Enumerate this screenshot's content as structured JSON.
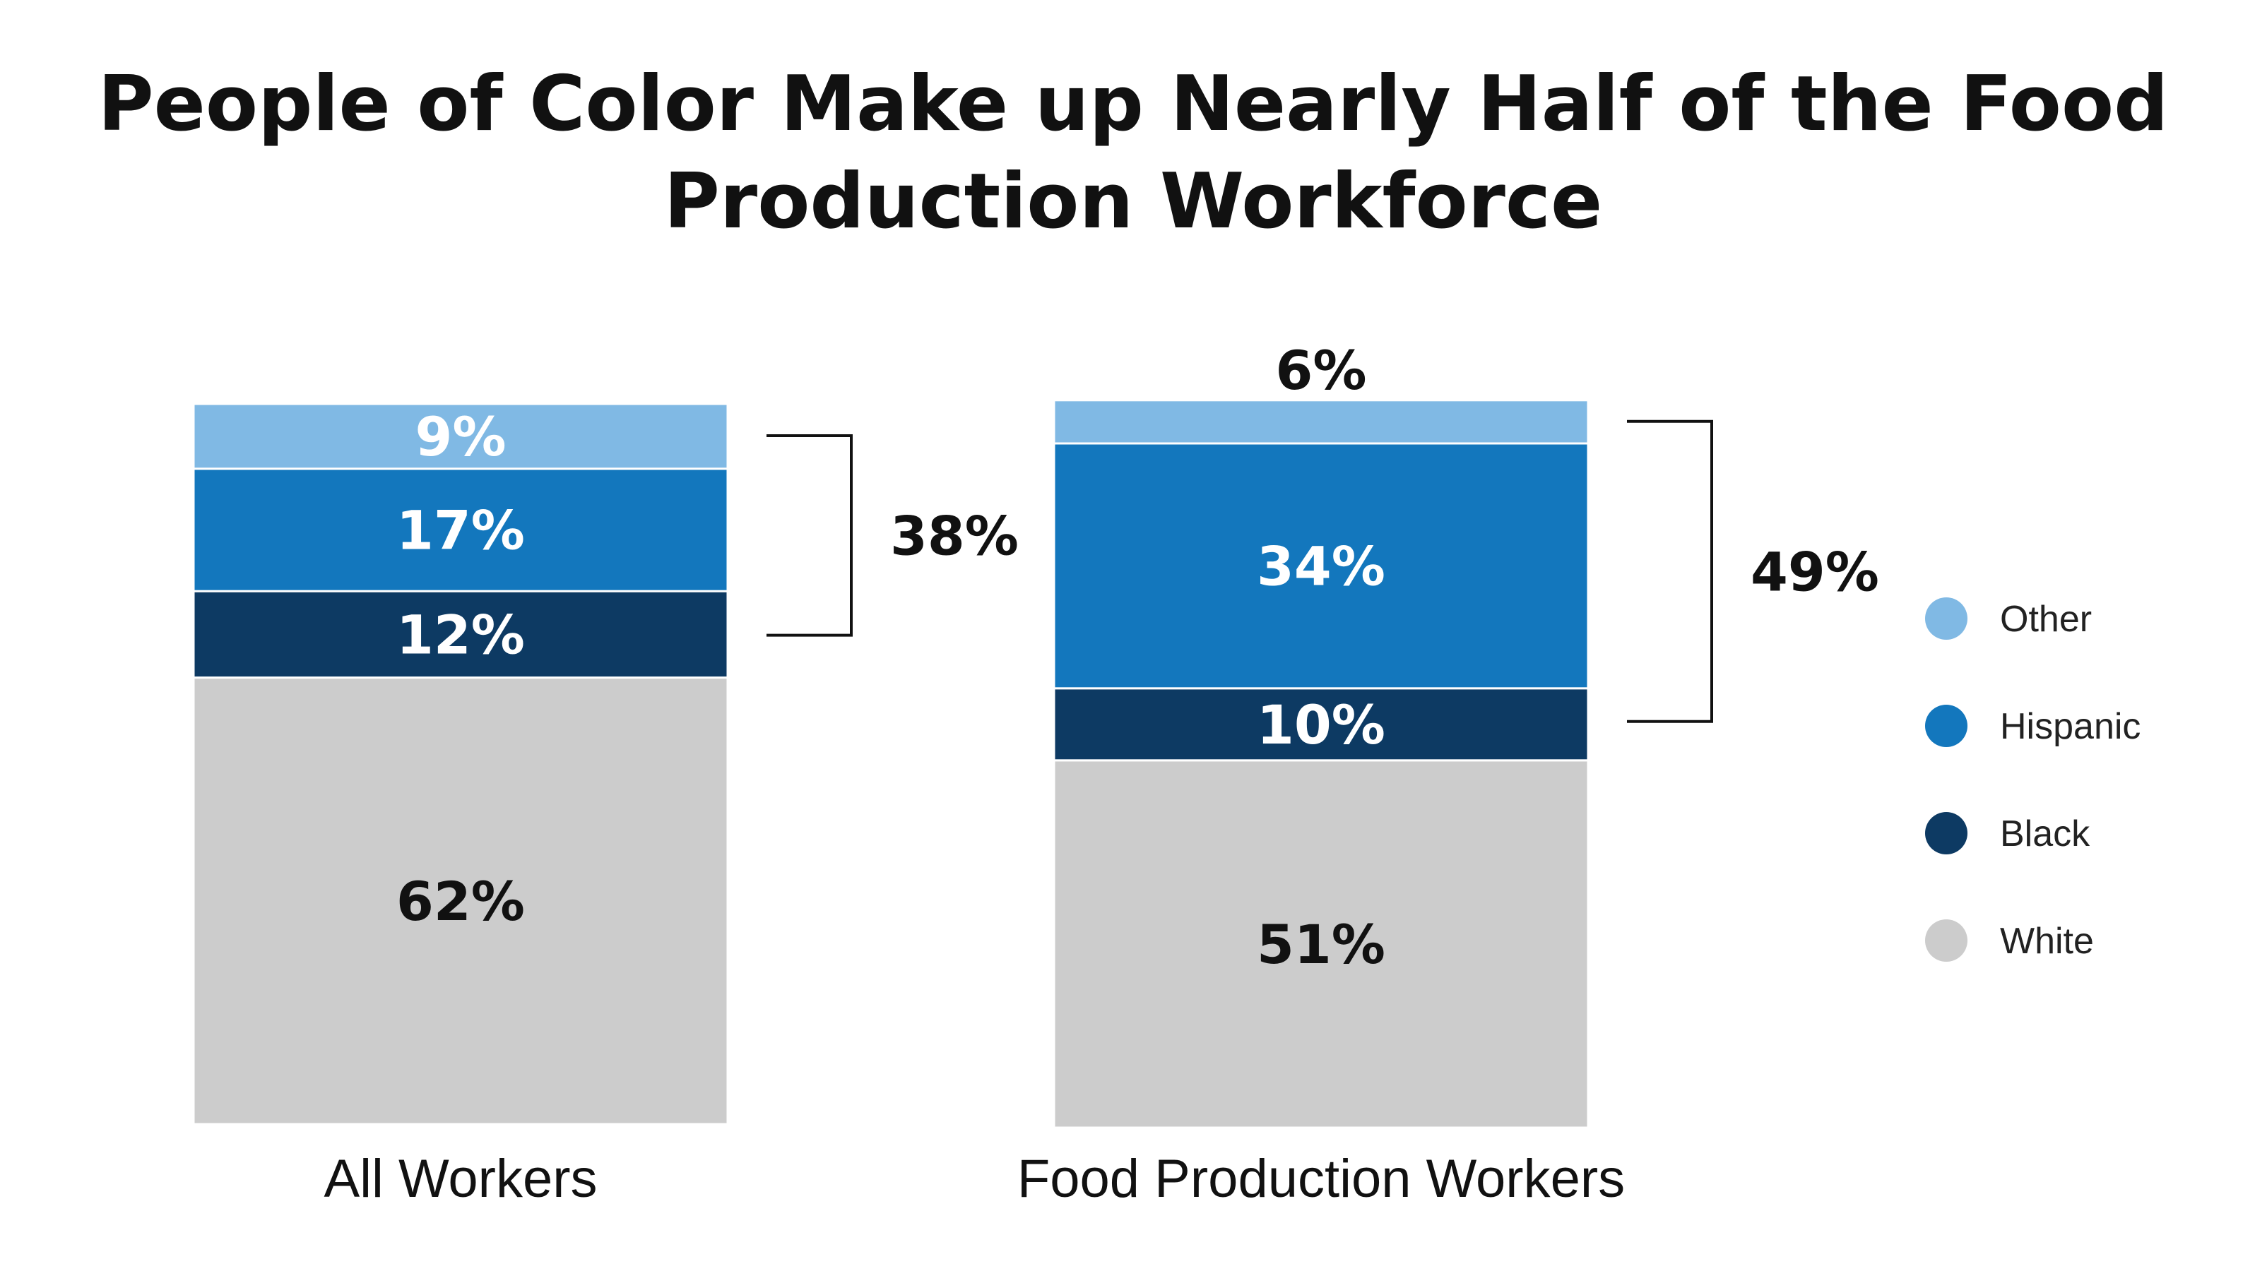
{
  "chart_data": {
    "type": "bar",
    "stacked": true,
    "title_lines": [
      "People of Color Make up Nearly Half of the Food",
      "Production Workforce"
    ],
    "categories": [
      "All Workers",
      "Food Production Workers"
    ],
    "series": [
      {
        "name": "White",
        "color": "#cccccc",
        "label_color": "#111111",
        "values": [
          62,
          51
        ]
      },
      {
        "name": "Black",
        "color": "#0d3a63",
        "label_color": "#ffffff",
        "values": [
          12,
          10
        ]
      },
      {
        "name": "Hispanic",
        "color": "#1377bd",
        "label_color": "#ffffff",
        "values": [
          17,
          34
        ]
      },
      {
        "name": "Other",
        "color": "#80b9e4",
        "label_color": "#ffffff",
        "values": [
          9,
          6
        ]
      }
    ],
    "value_labels": [
      {
        "White": "62%",
        "Black": "12%",
        "Hispanic": "17%",
        "Other": "9%"
      },
      {
        "White": "51%",
        "Black": "10%",
        "Hispanic": "34%",
        "Other": "6%"
      }
    ],
    "brackets": [
      {
        "category": "All Workers",
        "label": "38%",
        "value": 38
      },
      {
        "category": "Food Production Workers",
        "label": "49%",
        "value": 49
      }
    ],
    "legend": {
      "placement": "right",
      "items": [
        {
          "name": "Other",
          "color": "#80b9e4"
        },
        {
          "name": "Hispanic",
          "color": "#1377bd"
        },
        {
          "name": "Black",
          "color": "#0d3a63"
        },
        {
          "name": "White",
          "color": "#cccccc"
        }
      ]
    },
    "ylim": [
      0,
      100
    ],
    "grid": false,
    "xlabel": "",
    "ylabel": ""
  }
}
